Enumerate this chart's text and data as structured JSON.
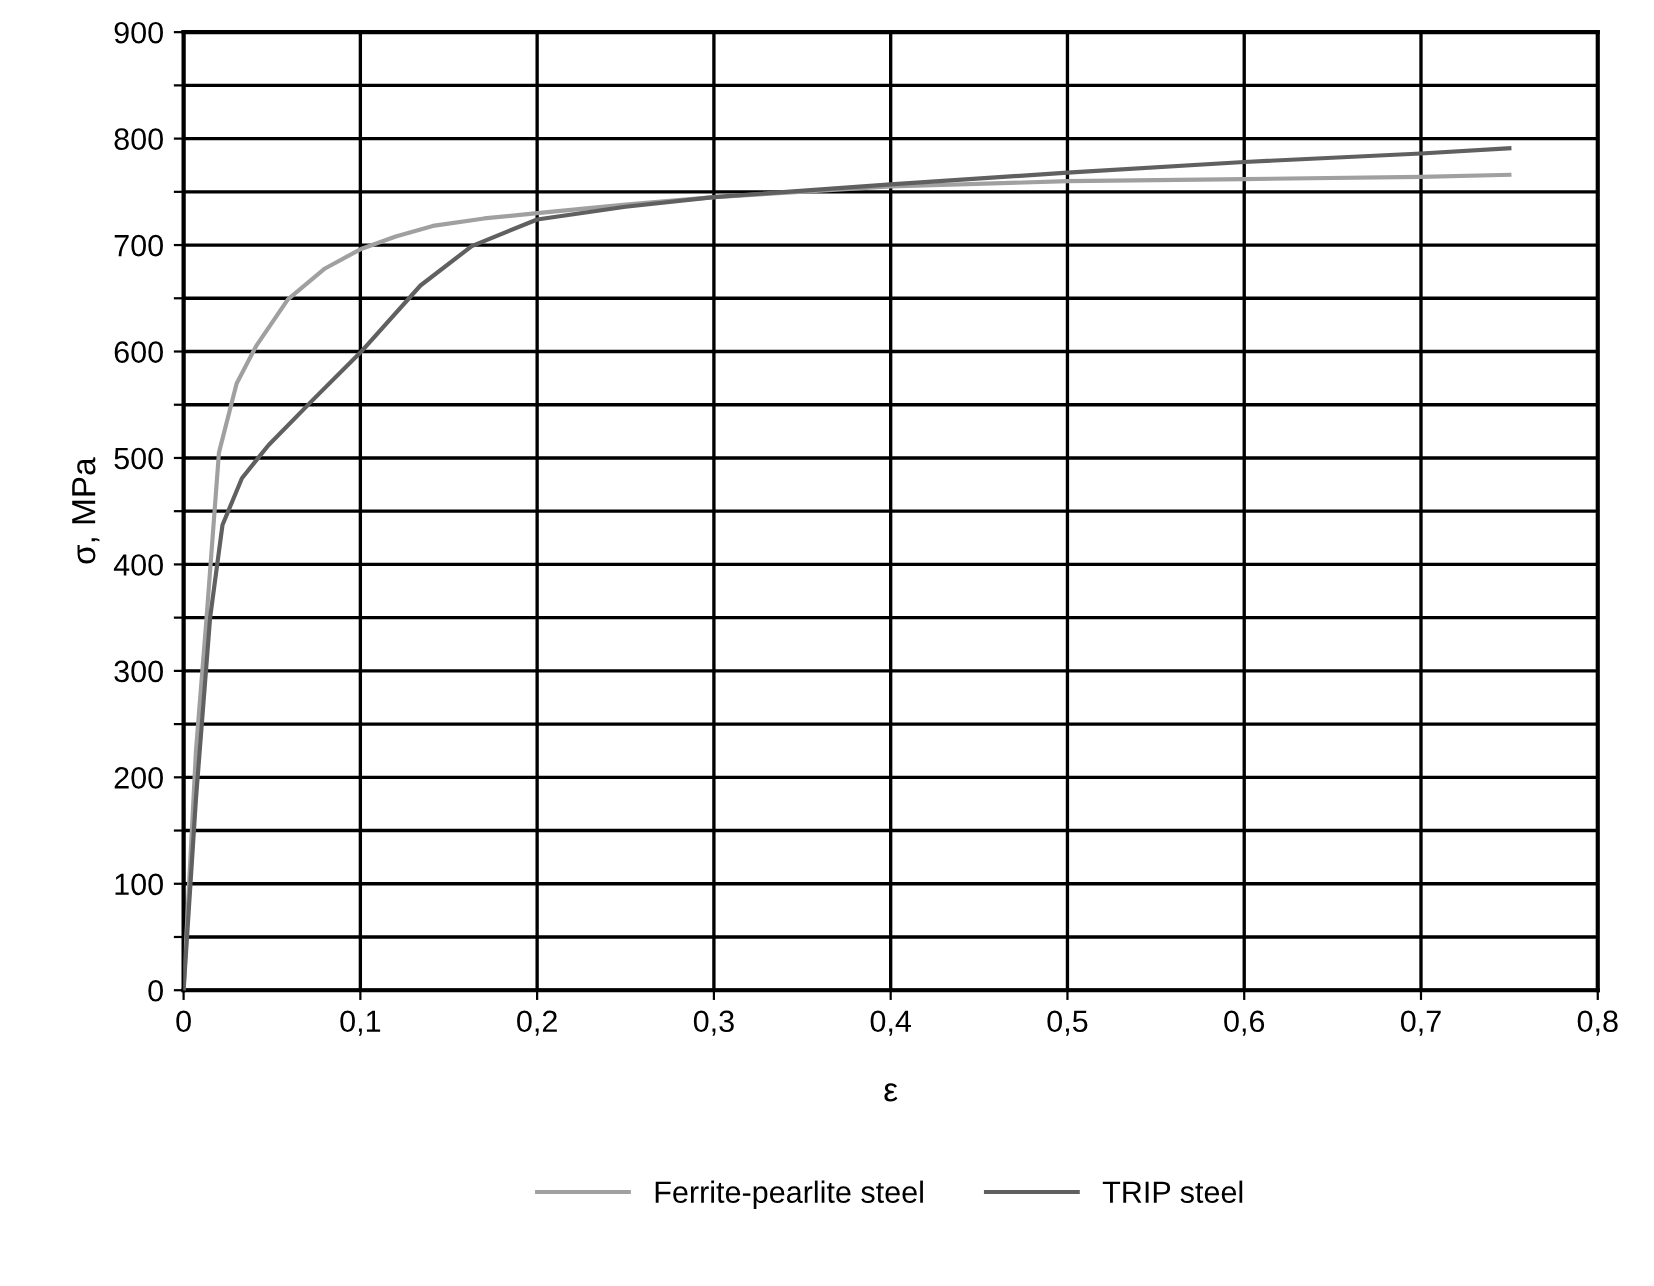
{
  "chart_data": {
    "type": "line",
    "xlabel": "ε",
    "ylabel": "σ, MPa",
    "xlim": [
      0,
      0.8
    ],
    "ylim": [
      0,
      900
    ],
    "xticks": [
      {
        "value": 0,
        "label": "0"
      },
      {
        "value": 0.1,
        "label": "0,1"
      },
      {
        "value": 0.2,
        "label": "0,2"
      },
      {
        "value": 0.3,
        "label": "0,3"
      },
      {
        "value": 0.4,
        "label": "0,4"
      },
      {
        "value": 0.5,
        "label": "0,5"
      },
      {
        "value": 0.6,
        "label": "0,6"
      },
      {
        "value": 0.7,
        "label": "0,7"
      },
      {
        "value": 0.8,
        "label": "0,8"
      }
    ],
    "yticks": [
      0,
      {
        "value": 50,
        "label": null
      },
      100,
      {
        "value": 150,
        "label": null
      },
      200,
      {
        "value": 250,
        "label": null
      },
      300,
      {
        "value": 350,
        "label": null
      },
      400,
      {
        "value": 450,
        "label": null
      },
      500,
      {
        "value": 550,
        "label": null
      },
      600,
      {
        "value": 650,
        "label": null
      },
      700,
      {
        "value": 750,
        "label": null
      },
      800,
      {
        "value": 850,
        "label": null
      },
      900
    ],
    "grid": true,
    "legend": "bottom",
    "marker": "none",
    "line_style": "solid",
    "series": [
      {
        "name": "Ferrite-pearlite steel",
        "color": "#a0a0a0",
        "x": [
          0,
          0.007,
          0.013,
          0.02,
          0.03,
          0.041,
          0.059,
          0.08,
          0.1,
          0.12,
          0.141,
          0.17,
          0.2,
          0.25,
          0.3,
          0.4,
          0.5,
          0.6,
          0.7,
          0.75
        ],
        "values": [
          0,
          225,
          350,
          505,
          570,
          605,
          649,
          678,
          696,
          708,
          718,
          725,
          730,
          738,
          745,
          755,
          760,
          762,
          764,
          766
        ]
      },
      {
        "name": "TRIP steel",
        "color": "#606060",
        "x": [
          0,
          0.007,
          0.015,
          0.022,
          0.033,
          0.048,
          0.074,
          0.1,
          0.134,
          0.163,
          0.2,
          0.25,
          0.3,
          0.4,
          0.5,
          0.6,
          0.7,
          0.75
        ],
        "values": [
          0,
          180,
          350,
          437,
          481,
          512,
          556,
          599,
          662,
          699,
          724,
          736,
          745,
          757,
          768,
          778,
          786,
          791
        ]
      }
    ]
  }
}
